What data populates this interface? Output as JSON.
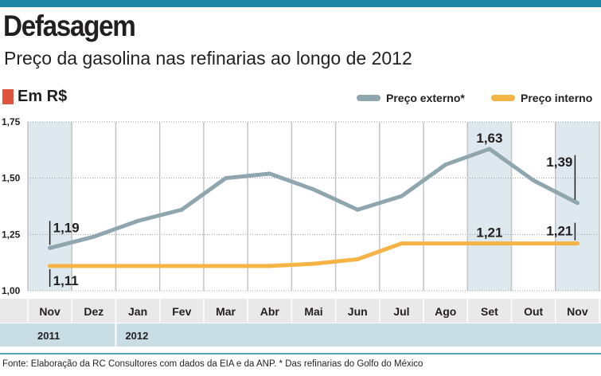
{
  "header": {
    "title": "Defasagem",
    "subtitle": "Preço da gasolina nas refinarias ao longo de 2012",
    "unit": "Em R$"
  },
  "colors": {
    "accent_bar": "#1c86a6",
    "unit_marker": "#e0533c",
    "externo": "#8fa6ae",
    "interno": "#f6b346",
    "highlight_column": "#dde9ef",
    "grid": "#c4c4c4",
    "month_band": "#e9e9ea",
    "year_band": "#c9dde5"
  },
  "chart_data": {
    "type": "line",
    "categories": [
      "Nov",
      "Dez",
      "Jan",
      "Fev",
      "Mar",
      "Abr",
      "Mai",
      "Jun",
      "Jul",
      "Ago",
      "Set",
      "Out",
      "Nov"
    ],
    "years": [
      {
        "label": "2011",
        "start_index": 0
      },
      {
        "label": "2012",
        "start_index": 2
      }
    ],
    "highlighted_categories": [
      0,
      10,
      12
    ],
    "series": [
      {
        "key": "externo",
        "name": "Preço externo*",
        "color": "#8fa6ae",
        "values": [
          1.19,
          1.24,
          1.31,
          1.36,
          1.5,
          1.52,
          1.45,
          1.36,
          1.42,
          1.56,
          1.63,
          1.49,
          1.39
        ]
      },
      {
        "key": "interno",
        "name": "Preço interno",
        "color": "#f6b346",
        "values": [
          1.11,
          1.11,
          1.11,
          1.11,
          1.11,
          1.11,
          1.12,
          1.14,
          1.21,
          1.21,
          1.21,
          1.21,
          1.21
        ]
      }
    ],
    "ylim": [
      1.0,
      1.75
    ],
    "yticks": [
      {
        "value": 1.0,
        "label": "1,00"
      },
      {
        "value": 1.25,
        "label": "1,25"
      },
      {
        "value": 1.5,
        "label": "1,50"
      },
      {
        "value": 1.75,
        "label": "1,75"
      }
    ],
    "annotations": [
      {
        "series": "externo",
        "index": 0,
        "text": "1,19",
        "style": "leader-up"
      },
      {
        "series": "interno",
        "index": 0,
        "text": "1,11",
        "style": "leader-down"
      },
      {
        "series": "externo",
        "index": 10,
        "text": "1,63",
        "style": "above"
      },
      {
        "series": "interno",
        "index": 10,
        "text": "1,21",
        "style": "above"
      },
      {
        "series": "externo",
        "index": 12,
        "text": "1,39",
        "style": "leader-left-up"
      },
      {
        "series": "interno",
        "index": 12,
        "text": "1,21",
        "style": "leader-left-up"
      }
    ],
    "grid": true,
    "legend_position": "top-right"
  },
  "footer": {
    "source": "Fonte: Elaboração da RC Consultores com dados da EIA e da ANP. * Das refinarias do Golfo do México"
  }
}
